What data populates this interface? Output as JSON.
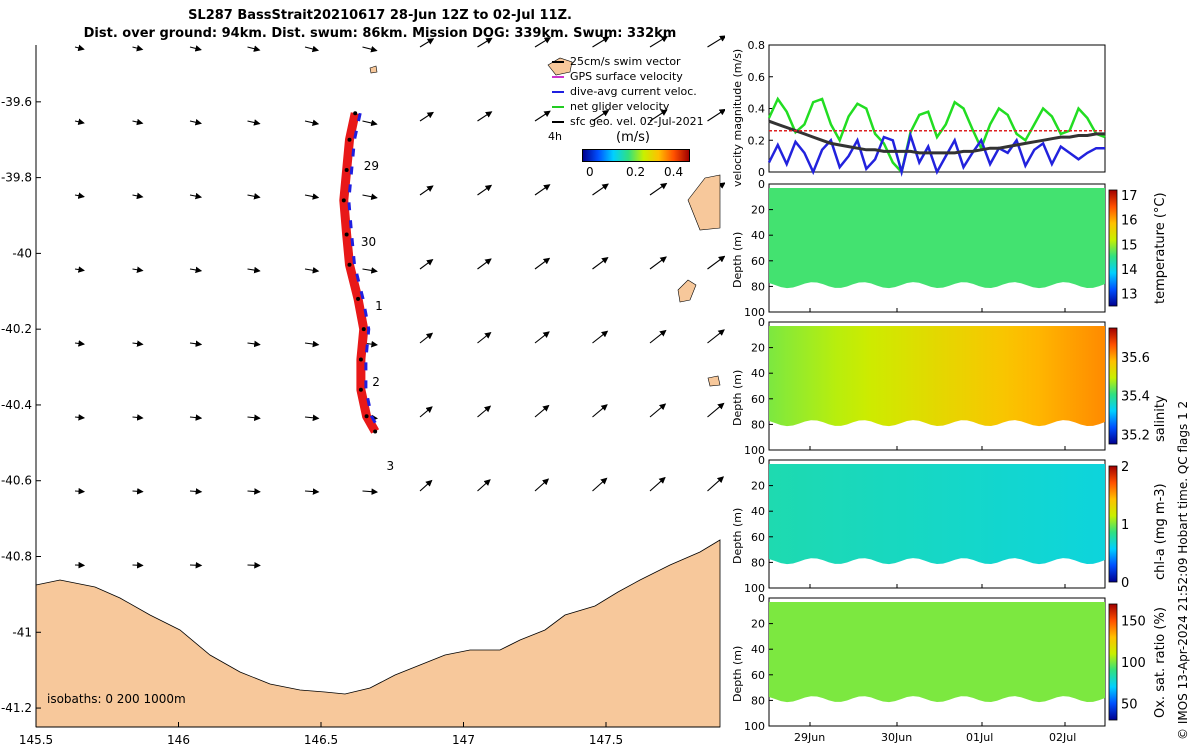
{
  "header": {
    "title_line1": "SL287 BassStrait20210617 28-Jun 12Z to 02-Jul 11Z.",
    "title_line2": "Dist. over ground: 94km. Dist. swum: 86km. Mission DOG: 339km. Swum: 332km"
  },
  "map": {
    "legend": {
      "items": [
        {
          "label": "25cm/s swim vector",
          "color": "#000000"
        },
        {
          "label": "GPS surface velocity",
          "color": "#cc33cc"
        },
        {
          "label": "dive-avg current veloc.",
          "color": "#1f1fe0"
        },
        {
          "label": "net glider velocity",
          "color": "#22cc22"
        },
        {
          "label": "sfc geo. vel. 02-Jul-2021",
          "color": "#000000"
        }
      ],
      "interval_label": "4h",
      "colorbar_title": "(m/s)",
      "colorbar_ticks": [
        "0",
        "0.2",
        "0.4"
      ]
    },
    "day_labels": [
      "29",
      "30",
      "1",
      "2",
      "3"
    ],
    "isobaths_label": "isobaths: 0   200  1000m",
    "land_color": "#f7c89b",
    "track_color": "#e81818",
    "chart_data": {
      "type": "scatter",
      "xlim": [
        145.5,
        147.9
      ],
      "ylim": [
        -41.25,
        -39.45
      ],
      "xticks": [
        "145.5",
        "146",
        "146.5",
        "147",
        "147.5"
      ],
      "yticks": [
        "-39.6",
        "-39.8",
        "-40",
        "-40.2",
        "-40.4",
        "-40.6",
        "-40.8",
        "-41",
        "-41.2"
      ],
      "track": [
        {
          "lon": 146.62,
          "lat": -39.63
        },
        {
          "lon": 146.6,
          "lat": -39.7
        },
        {
          "lon": 146.59,
          "lat": -39.78
        },
        {
          "lon": 146.58,
          "lat": -39.86
        },
        {
          "lon": 146.59,
          "lat": -39.95
        },
        {
          "lon": 146.6,
          "lat": -40.03
        },
        {
          "lon": 146.63,
          "lat": -40.12
        },
        {
          "lon": 146.65,
          "lat": -40.2
        },
        {
          "lon": 146.64,
          "lat": -40.28
        },
        {
          "lon": 146.64,
          "lat": -40.36
        },
        {
          "lon": 146.66,
          "lat": -40.43
        },
        {
          "lon": 146.69,
          "lat": -40.47
        }
      ],
      "day_markers": [
        {
          "label": "29",
          "lon": 146.65,
          "lat": -39.77
        },
        {
          "label": "30",
          "lon": 146.64,
          "lat": -39.97
        },
        {
          "label": "1",
          "lon": 146.69,
          "lat": -40.14
        },
        {
          "label": "2",
          "lon": 146.68,
          "lat": -40.34
        },
        {
          "label": "3",
          "lon": 146.73,
          "lat": -40.56
        }
      ]
    }
  },
  "velocity_panel": {
    "ylabel": "velocity magnitude (m/s)",
    "chart_data": {
      "type": "line",
      "ylim": [
        0,
        0.8
      ],
      "yticks": [
        "0",
        "0.2",
        "0.4",
        "0.6",
        "0.8"
      ],
      "series": [
        {
          "color": "#22dd22",
          "values": [
            0.34,
            0.46,
            0.38,
            0.25,
            0.3,
            0.44,
            0.46,
            0.3,
            0.2,
            0.35,
            0.43,
            0.4,
            0.24,
            0.18,
            0.06,
            0.0,
            0.25,
            0.36,
            0.38,
            0.22,
            0.3,
            0.44,
            0.4,
            0.27,
            0.15,
            0.3,
            0.4,
            0.36,
            0.24,
            0.2,
            0.3,
            0.4,
            0.35,
            0.24,
            0.26,
            0.4,
            0.34,
            0.24,
            0.22
          ]
        },
        {
          "color": "#2222dd",
          "values": [
            0.06,
            0.17,
            0.05,
            0.19,
            0.12,
            0.0,
            0.14,
            0.2,
            0.03,
            0.1,
            0.2,
            0.02,
            0.08,
            0.22,
            0.2,
            0.0,
            0.23,
            0.06,
            0.16,
            0.0,
            0.1,
            0.2,
            0.03,
            0.12,
            0.2,
            0.05,
            0.15,
            0.12,
            0.2,
            0.04,
            0.14,
            0.18,
            0.05,
            0.16,
            0.12,
            0.08,
            0.12,
            0.15,
            0.15
          ]
        },
        {
          "color": "#333333",
          "values": [
            0.32,
            0.3,
            0.28,
            0.26,
            0.24,
            0.22,
            0.2,
            0.18,
            0.17,
            0.16,
            0.15,
            0.14,
            0.14,
            0.13,
            0.13,
            0.13,
            0.13,
            0.12,
            0.12,
            0.12,
            0.12,
            0.12,
            0.13,
            0.13,
            0.14,
            0.15,
            0.15,
            0.16,
            0.17,
            0.18,
            0.19,
            0.2,
            0.21,
            0.22,
            0.22,
            0.23,
            0.23,
            0.24,
            0.24
          ]
        },
        {
          "color": "#dd2222",
          "values": [
            0.26,
            0.26,
            0.26,
            0.26,
            0.26,
            0.26,
            0.26,
            0.26,
            0.26,
            0.26,
            0.26,
            0.26,
            0.26,
            0.26,
            0.26,
            0.26,
            0.26,
            0.26,
            0.26,
            0.26,
            0.26,
            0.26,
            0.26,
            0.26,
            0.26,
            0.26,
            0.26,
            0.26,
            0.26,
            0.26,
            0.26,
            0.26,
            0.26,
            0.26,
            0.26,
            0.26,
            0.26,
            0.26,
            0.26
          ]
        }
      ]
    }
  },
  "section_panels": {
    "depth_label": "Depth (m)",
    "depth_ticks": [
      "0",
      "20",
      "40",
      "60",
      "80",
      "100"
    ],
    "x_ticks": [
      "29Jun",
      "30Jun",
      "01Jul",
      "02Jul"
    ],
    "panels": [
      {
        "var_label": "temperature (°C)",
        "cbar_ticks": [
          "17",
          "16",
          "15",
          "14",
          "13"
        ],
        "clim": [
          12.5,
          17.2
        ],
        "value_left": 14.6,
        "value_right": 14.6
      },
      {
        "var_label": "salinity",
        "cbar_ticks": [
          "35.6",
          "35.4",
          "35.2"
        ],
        "clim": [
          35.15,
          35.75
        ],
        "value_left": 35.45,
        "value_right": 35.62
      },
      {
        "var_label": "chl-a (mg m-3)",
        "cbar_ticks": [
          "2",
          "1",
          "0"
        ],
        "clim": [
          0,
          2
        ],
        "value_left": 0.75,
        "value_right": 0.65
      },
      {
        "var_label": "Ox. sat. ratio (%)",
        "cbar_ticks": [
          "150",
          "100",
          "50"
        ],
        "clim": [
          30,
          170
        ],
        "value_left": 100,
        "value_right": 100
      }
    ]
  },
  "footer": {
    "credit": "© IMOS 13-Apr-2024 21:52:09 Hobart time. QC flags 1  2"
  }
}
